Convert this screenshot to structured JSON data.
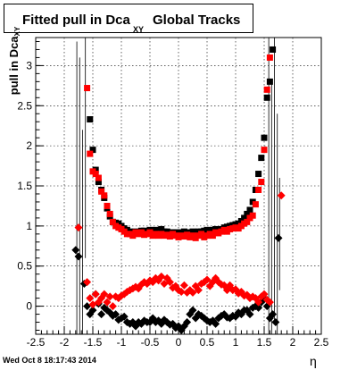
{
  "header": {
    "title_main": "Fitted pull in Dca",
    "title_sub": "XY",
    "title_rest": "Global Tracks"
  },
  "axes": {
    "ylabel_main": "pull in Dca",
    "ylabel_sub": "XY",
    "xlabel": "η"
  },
  "footer": {
    "timestamp": "Wed Oct  8 18:17:43 2014"
  },
  "chart_data": {
    "type": "scatter",
    "xlim": [
      -2.5,
      2.5
    ],
    "ylim": [
      -0.35,
      3.35
    ],
    "grid": true,
    "x_ticks": [
      -2.5,
      -2,
      -1.5,
      -1,
      -0.5,
      0,
      0.5,
      1,
      1.5,
      2,
      2.5
    ],
    "x_tick_labels": [
      "-2.5",
      "-2",
      "-1.5",
      "-1",
      "-0.5",
      "0",
      "0.5",
      "1",
      "1.5",
      "2",
      "2.5"
    ],
    "y_ticks": [
      0,
      0.5,
      1,
      1.5,
      2,
      2.5,
      3
    ],
    "y_tick_labels": [
      "0",
      "0.5",
      "1",
      "1.5",
      "2",
      "2.5",
      "3"
    ],
    "series": [
      {
        "color": "#000000",
        "marker": "square",
        "x": [
          -1.55,
          -1.5,
          -1.45,
          -1.4,
          -1.35,
          -1.3,
          -1.25,
          -1.2,
          -1.15,
          -1.1,
          -1.05,
          -1.0,
          -0.95,
          -0.9,
          -0.85,
          -0.8,
          -0.75,
          -0.7,
          -0.65,
          -0.6,
          -0.55,
          -0.5,
          -0.45,
          -0.4,
          -0.35,
          -0.3,
          -0.25,
          -0.2,
          -0.15,
          -0.1,
          -0.05,
          0.0,
          0.05,
          0.1,
          0.15,
          0.2,
          0.25,
          0.3,
          0.35,
          0.4,
          0.45,
          0.5,
          0.55,
          0.6,
          0.65,
          0.7,
          0.75,
          0.8,
          0.85,
          0.9,
          0.95,
          1.0,
          1.05,
          1.1,
          1.15,
          1.2,
          1.25,
          1.3,
          1.35,
          1.4,
          1.45,
          1.5,
          1.55,
          1.6,
          1.65
        ],
        "y": [
          2.33,
          1.95,
          1.7,
          1.55,
          1.45,
          1.35,
          1.22,
          1.12,
          1.05,
          1.04,
          1.03,
          1.0,
          0.97,
          0.95,
          0.93,
          0.92,
          0.93,
          0.92,
          0.94,
          0.94,
          0.93,
          0.95,
          0.94,
          0.95,
          0.93,
          0.96,
          0.93,
          0.93,
          0.91,
          0.92,
          0.92,
          0.91,
          0.92,
          0.93,
          0.89,
          0.92,
          0.93,
          0.92,
          0.93,
          0.93,
          0.94,
          0.95,
          0.94,
          0.95,
          0.96,
          0.95,
          0.96,
          0.98,
          0.99,
          1.0,
          1.01,
          1.02,
          1.03,
          1.06,
          1.1,
          1.15,
          1.2,
          1.3,
          1.45,
          1.65,
          1.85,
          2.1,
          2.6,
          2.8,
          3.2
        ]
      },
      {
        "color": "#ff0000",
        "marker": "square",
        "x": [
          -1.6,
          -1.55,
          -1.5,
          -1.45,
          -1.4,
          -1.35,
          -1.3,
          -1.25,
          -1.2,
          -1.15,
          -1.1,
          -1.05,
          -1.0,
          -0.95,
          -0.9,
          -0.85,
          -0.8,
          -0.75,
          -0.7,
          -0.65,
          -0.6,
          -0.55,
          -0.5,
          -0.45,
          -0.4,
          -0.35,
          -0.3,
          -0.25,
          -0.2,
          -0.15,
          -0.1,
          -0.05,
          0.0,
          0.05,
          0.1,
          0.15,
          0.2,
          0.25,
          0.3,
          0.35,
          0.4,
          0.45,
          0.5,
          0.55,
          0.6,
          0.65,
          0.7,
          0.75,
          0.8,
          0.85,
          0.9,
          0.95,
          1.0,
          1.05,
          1.1,
          1.15,
          1.2,
          1.25,
          1.3,
          1.35,
          1.4,
          1.45,
          1.5,
          1.55,
          1.6
        ],
        "y": [
          2.72,
          1.9,
          1.68,
          1.65,
          1.6,
          1.43,
          1.38,
          1.25,
          1.15,
          1.05,
          1.0,
          0.98,
          0.96,
          0.93,
          0.9,
          0.9,
          0.88,
          0.92,
          0.9,
          0.92,
          0.89,
          0.9,
          0.92,
          0.88,
          0.9,
          0.88,
          0.9,
          0.88,
          0.89,
          0.87,
          0.9,
          0.88,
          0.86,
          0.88,
          0.87,
          0.89,
          0.86,
          0.88,
          0.85,
          0.88,
          0.9,
          0.86,
          0.88,
          0.9,
          0.88,
          0.92,
          0.91,
          0.93,
          0.95,
          0.93,
          0.96,
          0.97,
          0.98,
          0.97,
          1.0,
          1.03,
          1.05,
          1.1,
          1.13,
          1.27,
          1.45,
          1.55,
          1.95,
          2.7,
          3.1
        ]
      },
      {
        "color": "#ff0000",
        "marker": "diamond",
        "x": [
          -1.75,
          -1.6,
          -1.55,
          -1.5,
          -1.45,
          -1.4,
          -1.35,
          -1.3,
          -1.25,
          -1.2,
          -1.15,
          -1.1,
          -1.05,
          -1.0,
          -0.95,
          -0.9,
          -0.85,
          -0.8,
          -0.75,
          -0.7,
          -0.65,
          -0.6,
          -0.55,
          -0.5,
          -0.45,
          -0.4,
          -0.35,
          -0.3,
          -0.25,
          -0.2,
          -0.15,
          -0.1,
          -0.05,
          0.0,
          0.05,
          0.1,
          0.15,
          0.2,
          0.25,
          0.3,
          0.35,
          0.4,
          0.45,
          0.5,
          0.55,
          0.6,
          0.65,
          0.7,
          0.75,
          0.8,
          0.85,
          0.9,
          0.95,
          1.0,
          1.05,
          1.1,
          1.15,
          1.2,
          1.25,
          1.3,
          1.35,
          1.4,
          1.45,
          1.5,
          1.55,
          1.6,
          1.8
        ],
        "y": [
          0.98,
          0.3,
          0.1,
          0.02,
          0.15,
          0.05,
          0.1,
          0.15,
          0.05,
          0.12,
          0.0,
          0.12,
          0.1,
          0.13,
          0.15,
          0.18,
          0.2,
          0.22,
          0.24,
          0.22,
          0.27,
          0.3,
          0.28,
          0.32,
          0.3,
          0.35,
          0.32,
          0.37,
          0.28,
          0.35,
          0.3,
          0.23,
          0.25,
          0.2,
          0.18,
          0.26,
          0.17,
          0.2,
          0.17,
          0.25,
          0.2,
          0.28,
          0.3,
          0.33,
          0.25,
          0.3,
          0.35,
          0.3,
          0.27,
          0.26,
          0.2,
          0.26,
          0.2,
          0.21,
          0.16,
          0.18,
          0.13,
          0.14,
          0.1,
          0.12,
          0.1,
          0.05,
          0.12,
          0.15,
          0.08,
          0.05,
          1.38
        ]
      },
      {
        "color": "#000000",
        "marker": "diamond",
        "x": [
          -1.8,
          -1.75,
          -1.65,
          -1.6,
          -1.55,
          -1.5,
          -1.45,
          -1.4,
          -1.35,
          -1.3,
          -1.25,
          -1.2,
          -1.15,
          -1.1,
          -1.05,
          -1.0,
          -0.95,
          -0.9,
          -0.85,
          -0.8,
          -0.75,
          -0.7,
          -0.65,
          -0.6,
          -0.55,
          -0.5,
          -0.45,
          -0.4,
          -0.35,
          -0.3,
          -0.25,
          -0.2,
          -0.15,
          -0.1,
          -0.05,
          0.0,
          0.05,
          0.1,
          0.15,
          0.2,
          0.25,
          0.3,
          0.35,
          0.4,
          0.45,
          0.5,
          0.55,
          0.6,
          0.65,
          0.7,
          0.75,
          0.8,
          0.85,
          0.9,
          0.95,
          1.0,
          1.05,
          1.1,
          1.15,
          1.2,
          1.25,
          1.3,
          1.35,
          1.4,
          1.45,
          1.5,
          1.55,
          1.6,
          1.65,
          1.7,
          1.75
        ],
        "y": [
          0.7,
          0.62,
          0.28,
          0.0,
          -0.1,
          -0.05,
          0.15,
          0.03,
          -0.1,
          -0.02,
          -0.05,
          -0.08,
          -0.12,
          -0.1,
          -0.17,
          -0.15,
          -0.13,
          -0.2,
          -0.22,
          -0.2,
          -0.25,
          -0.2,
          -0.22,
          -0.18,
          -0.2,
          -0.2,
          -0.15,
          -0.2,
          -0.18,
          -0.22,
          -0.17,
          -0.2,
          -0.23,
          -0.22,
          -0.27,
          -0.25,
          -0.3,
          -0.25,
          -0.2,
          -0.1,
          -0.05,
          -0.15,
          -0.1,
          -0.12,
          -0.15,
          -0.18,
          -0.2,
          -0.18,
          -0.22,
          -0.15,
          -0.12,
          -0.1,
          -0.14,
          -0.15,
          -0.12,
          -0.13,
          -0.08,
          -0.1,
          -0.05,
          -0.05,
          -0.1,
          -0.02,
          0.0,
          -0.02,
          0.05,
          0.1,
          0.0,
          -0.15,
          -0.1,
          -0.2,
          0.85
        ]
      }
    ]
  }
}
